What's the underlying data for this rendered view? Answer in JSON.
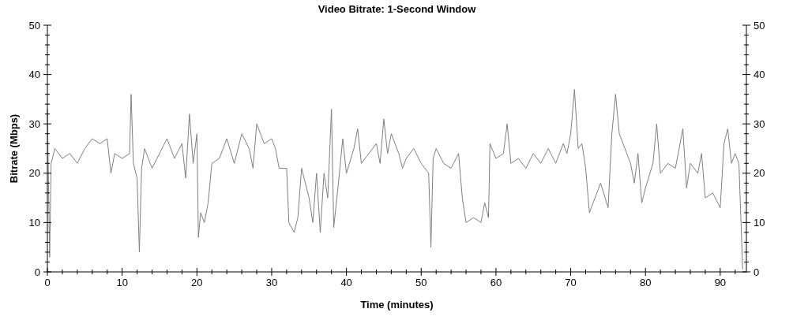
{
  "chart_data": {
    "type": "line",
    "title": "Video Bitrate: 1-Second Window",
    "xlabel": "Time (minutes)",
    "ylabel": "Bitrate (Mbps)",
    "xlim": [
      0,
      93.5
    ],
    "xticks": [
      0,
      {
        "value": 2,
        "label": null
      },
      {
        "value": 4,
        "label": null
      },
      {
        "value": 6,
        "label": null
      },
      {
        "value": 8,
        "label": null
      },
      10,
      {
        "value": 12,
        "label": null
      },
      {
        "value": 14,
        "label": null
      },
      {
        "value": 16,
        "label": null
      },
      {
        "value": 18,
        "label": null
      },
      20,
      {
        "value": 22,
        "label": null
      },
      {
        "value": 24,
        "label": null
      },
      {
        "value": 26,
        "label": null
      },
      {
        "value": 28,
        "label": null
      },
      30,
      {
        "value": 32,
        "label": null
      },
      {
        "value": 34,
        "label": null
      },
      {
        "value": 36,
        "label": null
      },
      {
        "value": 38,
        "label": null
      },
      40,
      {
        "value": 42,
        "label": null
      },
      {
        "value": 44,
        "label": null
      },
      {
        "value": 46,
        "label": null
      },
      {
        "value": 48,
        "label": null
      },
      50,
      {
        "value": 52,
        "label": null
      },
      {
        "value": 54,
        "label": null
      },
      {
        "value": 56,
        "label": null
      },
      {
        "value": 58,
        "label": null
      },
      60,
      {
        "value": 62,
        "label": null
      },
      {
        "value": 64,
        "label": null
      },
      {
        "value": 66,
        "label": null
      },
      {
        "value": 68,
        "label": null
      },
      70,
      {
        "value": 72,
        "label": null
      },
      {
        "value": 74,
        "label": null
      },
      {
        "value": 76,
        "label": null
      },
      {
        "value": 78,
        "label": null
      },
      80,
      {
        "value": 82,
        "label": null
      },
      {
        "value": 84,
        "label": null
      },
      {
        "value": 86,
        "label": null
      },
      {
        "value": 88,
        "label": null
      },
      90,
      {
        "value": 92,
        "label": null
      }
    ],
    "ylim": [
      0,
      50
    ],
    "yticks": [
      0,
      {
        "value": 2,
        "label": null
      },
      {
        "value": 4,
        "label": null
      },
      {
        "value": 6,
        "label": null
      },
      {
        "value": 8,
        "label": null
      },
      10,
      {
        "value": 12,
        "label": null
      },
      {
        "value": 14,
        "label": null
      },
      {
        "value": 16,
        "label": null
      },
      {
        "value": 18,
        "label": null
      },
      20,
      {
        "value": 22,
        "label": null
      },
      {
        "value": 24,
        "label": null
      },
      {
        "value": 26,
        "label": null
      },
      {
        "value": 28,
        "label": null
      },
      30,
      {
        "value": 32,
        "label": null
      },
      {
        "value": 34,
        "label": null
      },
      {
        "value": 36,
        "label": null
      },
      {
        "value": 38,
        "label": null
      },
      40,
      {
        "value": 42,
        "label": null
      },
      {
        "value": 44,
        "label": null
      },
      {
        "value": 46,
        "label": null
      },
      {
        "value": 48,
        "label": null
      },
      50
    ],
    "y2lim": [
      0,
      50
    ],
    "y2ticks": [
      0,
      {
        "value": 2,
        "label": null
      },
      {
        "value": 4,
        "label": null
      },
      {
        "value": 6,
        "label": null
      },
      {
        "value": 8,
        "label": null
      },
      10,
      {
        "value": 12,
        "label": null
      },
      {
        "value": 14,
        "label": null
      },
      {
        "value": 16,
        "label": null
      },
      {
        "value": 18,
        "label": null
      },
      20,
      {
        "value": 22,
        "label": null
      },
      {
        "value": 24,
        "label": null
      },
      {
        "value": 26,
        "label": null
      },
      {
        "value": 28,
        "label": null
      },
      30,
      {
        "value": 32,
        "label": null
      },
      {
        "value": 34,
        "label": null
      },
      {
        "value": 36,
        "label": null
      },
      {
        "value": 38,
        "label": null
      },
      40,
      {
        "value": 42,
        "label": null
      },
      {
        "value": 44,
        "label": null
      },
      {
        "value": 46,
        "label": null
      },
      {
        "value": 48,
        "label": null
      },
      50
    ],
    "marker": "none",
    "line_style": "solid",
    "series": [
      {
        "color": "#808080",
        "x": [
          0,
          0.3,
          0.5,
          1,
          2,
          3,
          4,
          5,
          6,
          7,
          8,
          8.5,
          9,
          10,
          11,
          11.2,
          11.5,
          12,
          12.3,
          12.6,
          13,
          14,
          15,
          16,
          17,
          18,
          18.5,
          19,
          19.5,
          20,
          20.2,
          20.5,
          21,
          21.5,
          22,
          23,
          24,
          25,
          26,
          27,
          27.5,
          28,
          29,
          30,
          30.5,
          31,
          32,
          32.3,
          33,
          33.5,
          34,
          35,
          35.5,
          36,
          36.5,
          37,
          37.5,
          38,
          38.3,
          39,
          39.5,
          40,
          41,
          41.5,
          42,
          43,
          44,
          44.5,
          45,
          45.5,
          46,
          47,
          47.5,
          48,
          49,
          50,
          51,
          51.3,
          51.6,
          52,
          53,
          54,
          55,
          55.5,
          56,
          57,
          58,
          58.5,
          59,
          59.2,
          60,
          61,
          61.5,
          62,
          63,
          64,
          65,
          66,
          67,
          68,
          69,
          69.5,
          70,
          70.5,
          71,
          71.5,
          72,
          72.5,
          73,
          74,
          75,
          75.5,
          76,
          76.5,
          77,
          78,
          78.5,
          79,
          79.5,
          80,
          81,
          81.5,
          82,
          83,
          84,
          85,
          85.5,
          86,
          87,
          87.5,
          88,
          89,
          90,
          90.5,
          91,
          91.5,
          92,
          92.5,
          93
        ],
        "values": [
          33,
          3,
          22,
          25,
          23,
          24,
          22,
          25,
          27,
          26,
          27,
          20,
          24,
          23,
          24,
          36,
          22,
          19,
          4,
          21,
          25,
          21,
          24,
          27,
          23,
          26,
          19,
          32,
          22,
          28,
          7,
          12,
          10,
          14,
          22,
          23,
          27,
          22,
          28,
          25,
          21,
          30,
          26,
          27,
          25,
          21,
          21,
          10,
          8,
          11,
          21,
          15,
          10,
          20,
          8,
          20,
          15,
          33,
          9,
          19,
          27,
          20,
          25,
          29,
          22,
          24,
          26,
          22,
          31,
          24,
          28,
          24,
          21,
          23,
          25,
          22,
          20,
          5,
          23,
          25,
          22,
          21,
          24,
          15,
          10,
          11,
          10,
          14,
          11,
          26,
          23,
          24,
          30,
          22,
          23,
          21,
          24,
          22,
          25,
          22,
          26,
          24,
          28,
          37,
          25,
          26,
          21,
          12,
          14,
          18,
          13,
          28,
          36,
          28,
          26,
          22,
          18,
          24,
          14,
          17,
          22,
          30,
          20,
          22,
          21,
          29,
          17,
          22,
          20,
          24,
          15,
          16,
          13,
          26,
          29,
          22,
          24,
          22,
          0.5
        ]
      }
    ]
  }
}
